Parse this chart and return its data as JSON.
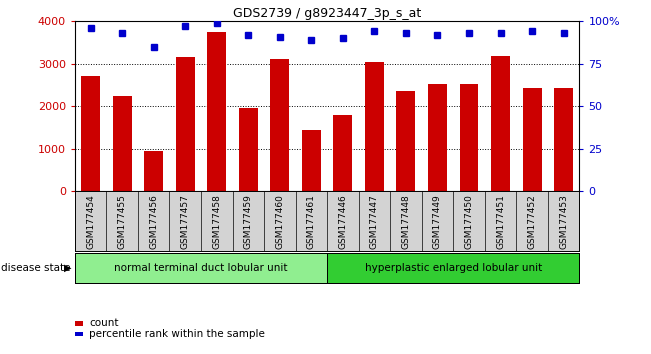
{
  "title": "GDS2739 / g8923447_3p_s_at",
  "categories": [
    "GSM177454",
    "GSM177455",
    "GSM177456",
    "GSM177457",
    "GSM177458",
    "GSM177459",
    "GSM177460",
    "GSM177461",
    "GSM177446",
    "GSM177447",
    "GSM177448",
    "GSM177449",
    "GSM177450",
    "GSM177451",
    "GSM177452",
    "GSM177453"
  ],
  "counts": [
    2700,
    2230,
    950,
    3150,
    3750,
    1950,
    3100,
    1450,
    1800,
    3030,
    2350,
    2520,
    2530,
    3190,
    2430,
    2430
  ],
  "percentiles": [
    96,
    93,
    85,
    97,
    99,
    92,
    91,
    89,
    90,
    94,
    93,
    92,
    93,
    93,
    94,
    93
  ],
  "group1_label": "normal terminal duct lobular unit",
  "group2_label": "hyperplastic enlarged lobular unit",
  "group1_count": 8,
  "group2_count": 8,
  "bar_color": "#cc0000",
  "dot_color": "#0000cc",
  "ylim_left": [
    0,
    4000
  ],
  "ylim_right": [
    0,
    100
  ],
  "yticks_left": [
    0,
    1000,
    2000,
    3000,
    4000
  ],
  "yticks_right": [
    0,
    25,
    50,
    75,
    100
  ],
  "group1_color": "#90ee90",
  "group2_color": "#32cd32",
  "bar_color_red": "#cc0000",
  "dot_color_blue": "#0000cc",
  "xtick_bg": "#d3d3d3"
}
